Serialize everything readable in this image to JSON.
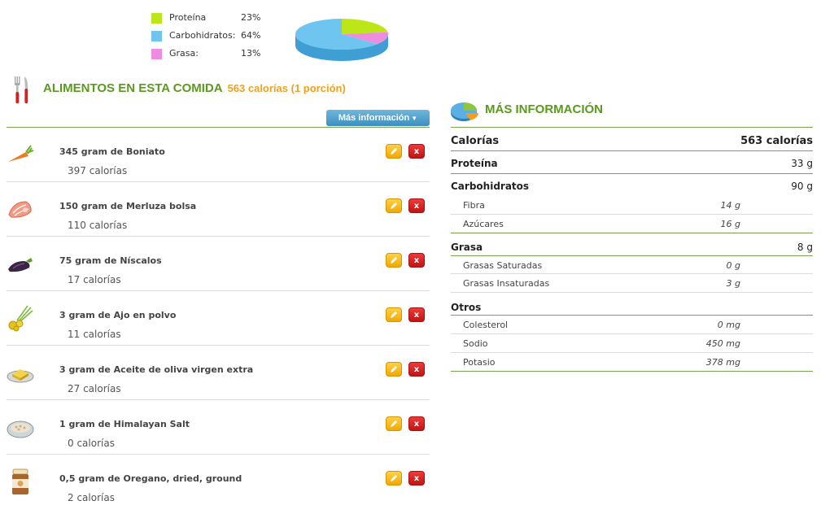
{
  "macros": {
    "items": [
      {
        "label": "Proteína",
        "percent": "23%",
        "color": "#bde619"
      },
      {
        "label": "Carbohidratos:",
        "percent": "64%",
        "color": "#6ec5ef"
      },
      {
        "label": "Grasa:",
        "percent": "13%",
        "color": "#ee8de0"
      }
    ]
  },
  "foods": {
    "title": "ALIMENTOS EN ESTA COMIDA",
    "calories": "563 calorías (1 porción)",
    "more_button": "Más información",
    "items": [
      {
        "name": "345 gram de Boniato",
        "calories": "397 calorías",
        "icon": "carrot-icon"
      },
      {
        "name": "150 gram de Merluza bolsa",
        "calories": "110 calorías",
        "icon": "fish-icon"
      },
      {
        "name": "75 gram de Níscalos",
        "calories": "17 calorías",
        "icon": "eggplant-icon"
      },
      {
        "name": "3 gram de Ajo en polvo",
        "calories": "11 calorías",
        "icon": "onion-icon"
      },
      {
        "name": "3 gram de Aceite de oliva virgen extra",
        "calories": "27 calorías",
        "icon": "butter-icon"
      },
      {
        "name": "1 gram de Himalayan Salt",
        "calories": "0 calorías",
        "icon": "bowl-icon"
      },
      {
        "name": "0,5 gram de Oregano, dried, ground",
        "calories": "2 calorías",
        "icon": "jar-icon"
      }
    ]
  },
  "info": {
    "title": "MÁS INFORMACIÓN",
    "calories": {
      "label": "Calorías",
      "value": "563 calorías"
    },
    "protein": {
      "label": "Proteína",
      "value": "33 g"
    },
    "carbs": {
      "label": "Carbohidratos",
      "value": "90 g"
    },
    "fiber": {
      "label": "Fibra",
      "value": "14 g"
    },
    "sugars": {
      "label": "Azúcares",
      "value": "16 g"
    },
    "fat": {
      "label": "Grasa",
      "value": "8 g"
    },
    "sat_fat": {
      "label": "Grasas Saturadas",
      "value": "0 g"
    },
    "unsat_fat": {
      "label": "Grasas Insaturadas",
      "value": "3 g"
    },
    "others": {
      "label": "Otros"
    },
    "cholesterol": {
      "label": "Colesterol",
      "value": "0 mg"
    },
    "sodium": {
      "label": "Sodio",
      "value": "450 mg"
    },
    "potassium": {
      "label": "Potasio",
      "value": "378 mg"
    }
  }
}
